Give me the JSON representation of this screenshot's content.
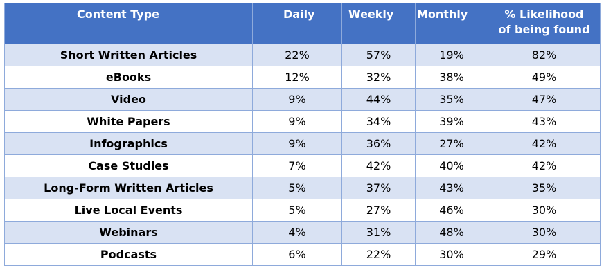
{
  "headers": {
    "content_type": "Content Type",
    "daily": "Daily",
    "weekly": "Weekly",
    "monthly": "Monthly",
    "likelihood_line1": "% Likelihood",
    "likelihood_line2": "of being found"
  },
  "rows": [
    {
      "type": "Short Written Articles",
      "daily": "22%",
      "weekly": "57%",
      "monthly": "19%",
      "likelihood": "82%"
    },
    {
      "type": "eBooks",
      "daily": "12%",
      "weekly": "32%",
      "monthly": "38%",
      "likelihood": "49%"
    },
    {
      "type": "Video",
      "daily": "9%",
      "weekly": "44%",
      "monthly": "35%",
      "likelihood": "47%"
    },
    {
      "type": "White Papers",
      "daily": "9%",
      "weekly": "34%",
      "monthly": "39%",
      "likelihood": "43%"
    },
    {
      "type": "Infographics",
      "daily": "9%",
      "weekly": "36%",
      "monthly": "27%",
      "likelihood": "42%"
    },
    {
      "type": "Case Studies",
      "daily": "7%",
      "weekly": "42%",
      "monthly": "40%",
      "likelihood": "42%"
    },
    {
      "type": "Long-Form Written Articles",
      "daily": "5%",
      "weekly": "37%",
      "monthly": "43%",
      "likelihood": "35%"
    },
    {
      "type": "Live Local Events",
      "daily": "5%",
      "weekly": "27%",
      "monthly": "46%",
      "likelihood": "30%"
    },
    {
      "type": "Webinars",
      "daily": "4%",
      "weekly": "31%",
      "monthly": "48%",
      "likelihood": "30%"
    },
    {
      "type": "Podcasts",
      "daily": "6%",
      "weekly": "22%",
      "monthly": "30%",
      "likelihood": "29%"
    }
  ],
  "colors": {
    "header_bg": "#4472c4",
    "band_bg": "#d9e2f3",
    "border": "#8eaadb"
  }
}
